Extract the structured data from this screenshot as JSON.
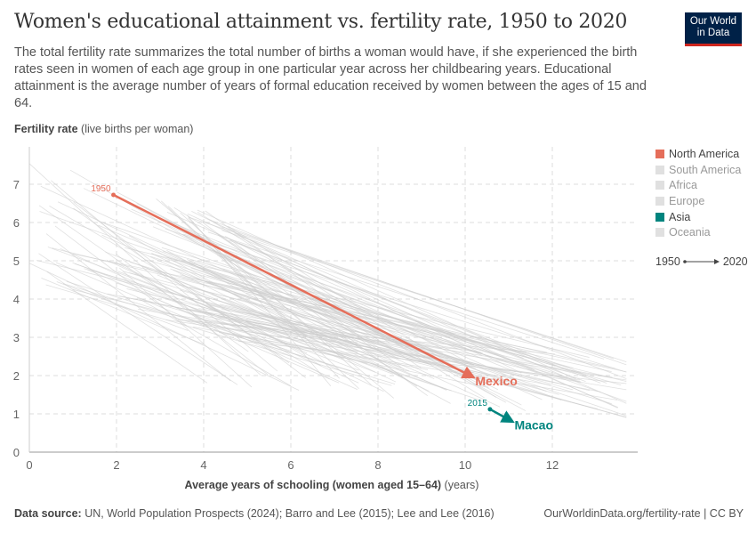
{
  "header": {
    "title": "Women's educational attainment vs. fertility rate, 1950 to 2020",
    "subtitle": "The total fertility rate summarizes the total number of births a woman would have, if she experienced the birth rates seen in women of each age group in one particular year across her childbearing years. Educational attainment is the average number of years of formal education received by women between the ages of 15 and 64.",
    "logo": "Our World in Data"
  },
  "chart_data": {
    "type": "scatter",
    "ylabel_bold": "Fertility rate",
    "ylabel_rest": " (live births per woman)",
    "xlabel_bold": "Average years of schooling (women aged 15–64)",
    "xlabel_rest": " (years)",
    "xlim": [
      0,
      13.9
    ],
    "ylim": [
      0,
      8
    ],
    "xticks": [
      "0",
      "2",
      "4",
      "6",
      "8",
      "10",
      "12"
    ],
    "yticks": [
      "0",
      "1",
      "2",
      "3",
      "4",
      "5",
      "6",
      "7"
    ],
    "grid": true,
    "legend_position": "right",
    "legend": [
      {
        "name": "North America",
        "color": "#e56e5a",
        "active": true
      },
      {
        "name": "South America",
        "color": "#e0e0e0",
        "active": false
      },
      {
        "name": "Africa",
        "color": "#e0e0e0",
        "active": false
      },
      {
        "name": "Europe",
        "color": "#e0e0e0",
        "active": false
      },
      {
        "name": "Asia",
        "color": "#00847e",
        "active": true
      },
      {
        "name": "Oceania",
        "color": "#e0e0e0",
        "active": false
      }
    ],
    "timeline": {
      "start": "1950",
      "end": "2020"
    },
    "highlighted": [
      {
        "name": "Mexico",
        "color": "#e56e5a",
        "start_label": "1950",
        "start": [
          1.93,
          6.72
        ],
        "end": [
          10.15,
          1.98
        ]
      },
      {
        "name": "Macao",
        "color": "#00847e",
        "start_label": "2015",
        "start": [
          10.57,
          1.12
        ],
        "end": [
          11.05,
          0.82
        ]
      }
    ]
  },
  "footer": {
    "source_bold": "Data source:",
    "source": " UN, World Population Prospects (2024); Barro and Lee (2015); Lee and Lee (2016)",
    "url": "OurWorldinData.org/fertility-rate | CC BY"
  }
}
